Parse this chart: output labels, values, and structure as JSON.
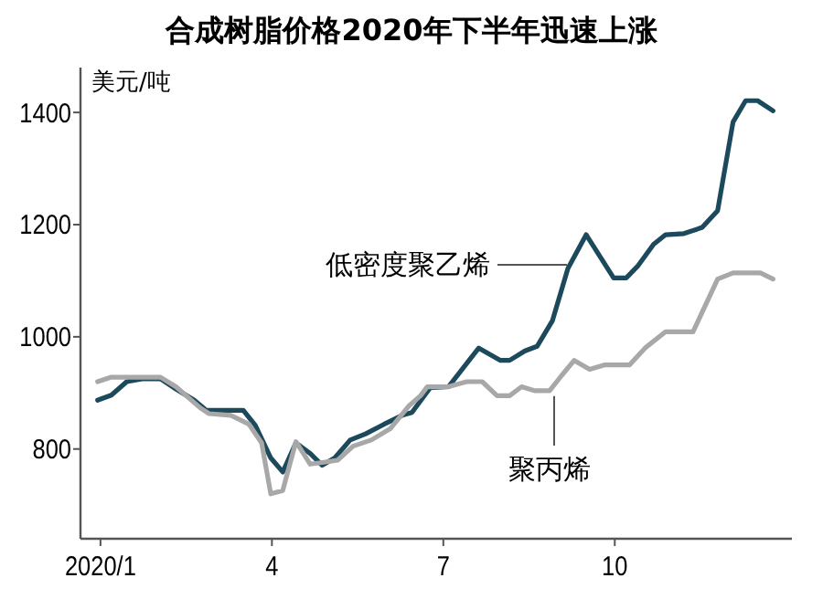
{
  "chart_data": {
    "type": "line",
    "title": "合成树脂价格2020年下半年迅速上涨",
    "ylabel": "美元/吨",
    "xlim": [
      0.65,
      13.1
    ],
    "xticks": [
      {
        "value": 1,
        "label": "2020/1"
      },
      4,
      7,
      10
    ],
    "ylim": [
      640,
      1480
    ],
    "yticks": [
      800,
      1000,
      1200,
      1400
    ],
    "grid": false,
    "legend": false,
    "marker": "none",
    "line_style": "solid",
    "series": [
      {
        "name": "低密度聚乙烯",
        "color": "#1c4a5c",
        "x": [
          0.95,
          1.19,
          1.46,
          1.73,
          2.05,
          2.32,
          2.64,
          2.85,
          3.5,
          3.71,
          3.98,
          4.19,
          4.42,
          4.67,
          4.88,
          5.1,
          5.37,
          5.64,
          5.96,
          6.28,
          6.45,
          6.77,
          7.09,
          7.62,
          8.0,
          8.16,
          8.43,
          8.64,
          8.91,
          9.18,
          9.5,
          9.98,
          10.2,
          10.41,
          10.68,
          10.89,
          11.21,
          11.53,
          11.8,
          12.07,
          12.29,
          12.5,
          12.77
        ],
        "values": [
          887,
          896,
          920,
          925,
          925,
          907,
          887,
          869,
          869,
          842,
          784,
          759,
          811,
          792,
          771,
          784,
          816,
          827,
          844,
          860,
          865,
          909,
          911,
          980,
          958,
          958,
          975,
          983,
          1029,
          1122,
          1182,
          1105,
          1105,
          1127,
          1165,
          1182,
          1184,
          1195,
          1225,
          1383,
          1421,
          1421,
          1403
        ]
      },
      {
        "name": "聚丙烯",
        "color": "#a8a8a8",
        "x": [
          0.95,
          1.19,
          2.05,
          2.32,
          2.75,
          2.9,
          3.28,
          3.6,
          3.82,
          3.98,
          4.19,
          4.42,
          4.67,
          4.88,
          5.15,
          5.42,
          5.74,
          6.07,
          6.39,
          6.6,
          6.72,
          7.09,
          7.41,
          7.68,
          7.94,
          8.16,
          8.37,
          8.59,
          8.86,
          9.07,
          9.29,
          9.56,
          9.83,
          10.26,
          10.53,
          10.89,
          11.37,
          11.8,
          12.07,
          12.55,
          12.77
        ],
        "values": [
          920,
          928,
          928,
          911,
          873,
          863,
          860,
          844,
          811,
          720,
          726,
          813,
          773,
          776,
          780,
          805,
          816,
          836,
          876,
          895,
          911,
          911,
          920,
          920,
          895,
          895,
          911,
          904,
          904,
          931,
          958,
          942,
          950,
          950,
          980,
          1009,
          1009,
          1103,
          1114,
          1114,
          1103
        ]
      }
    ]
  }
}
